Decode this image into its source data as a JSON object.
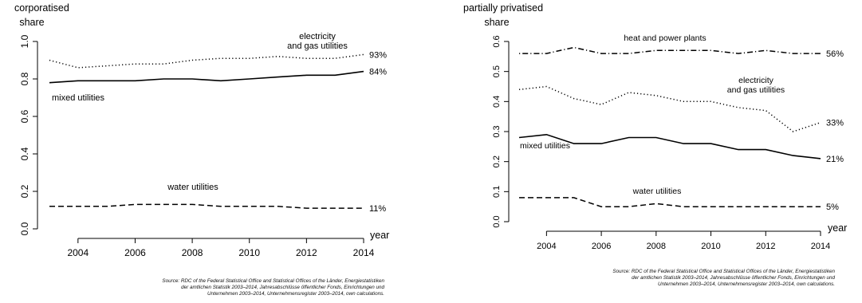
{
  "chart_data": [
    {
      "type": "line",
      "title": "corporatised",
      "ylabel": "share",
      "xlabel": "year",
      "xlim": [
        2003,
        2014
      ],
      "ylim": [
        0,
        1.0
      ],
      "xticks": [
        "2004",
        "2006",
        "2008",
        "2010",
        "2012",
        "2014"
      ],
      "yticks": [
        "0.0",
        "0.2",
        "0.4",
        "0.6",
        "0.8",
        "1.0"
      ],
      "x": [
        2003,
        2004,
        2005,
        2006,
        2007,
        2008,
        2009,
        2010,
        2011,
        2012,
        2013,
        2014
      ],
      "series": [
        {
          "name": "electricity and gas utilities",
          "label_lines": [
            "electricity",
            "and gas utilities"
          ],
          "style": "dotted",
          "values": [
            0.9,
            0.86,
            0.87,
            0.88,
            0.88,
            0.9,
            0.91,
            0.91,
            0.92,
            0.91,
            0.91,
            0.93
          ],
          "end_label": "93%"
        },
        {
          "name": "mixed utilities",
          "label_lines": [
            "mixed utilities"
          ],
          "style": "solid",
          "values": [
            0.78,
            0.79,
            0.79,
            0.79,
            0.8,
            0.8,
            0.79,
            0.8,
            0.81,
            0.82,
            0.82,
            0.84
          ],
          "end_label": "84%"
        },
        {
          "name": "water utilities",
          "label_lines": [
            "water utilities"
          ],
          "style": "dashed",
          "values": [
            0.12,
            0.12,
            0.12,
            0.13,
            0.13,
            0.13,
            0.12,
            0.12,
            0.12,
            0.11,
            0.11,
            0.11
          ],
          "end_label": "11%"
        }
      ],
      "source_lines": [
        "Source:  RDC of the Federal Statistical Office and Statistical Offices of the Länder, Energiestatistiken",
        "der amtlichen Statistik 2003–2014, Jahresabschlüsse öffentlicher Fonds, Einrichtungen und",
        "Unternehmen 2003–2014, Unternehmensregister 2003–2014, own calculations."
      ]
    },
    {
      "type": "line",
      "title": "partially privatised",
      "ylabel": "share",
      "xlabel": "year",
      "xlim": [
        2003,
        2014
      ],
      "ylim": [
        0,
        0.6
      ],
      "xticks": [
        "2004",
        "2006",
        "2008",
        "2010",
        "2012",
        "2014"
      ],
      "yticks": [
        "0.0",
        "0.1",
        "0.2",
        "0.3",
        "0.4",
        "0.5",
        "0.6"
      ],
      "x": [
        2003,
        2004,
        2005,
        2006,
        2007,
        2008,
        2009,
        2010,
        2011,
        2012,
        2013,
        2014
      ],
      "series": [
        {
          "name": "heat and power plants",
          "label_lines": [
            "heat and power plants"
          ],
          "style": "dotdash",
          "values": [
            0.56,
            0.56,
            0.58,
            0.56,
            0.56,
            0.57,
            0.57,
            0.57,
            0.56,
            0.57,
            0.56,
            0.56
          ],
          "end_label": "56%"
        },
        {
          "name": "electricity and gas utilities",
          "label_lines": [
            "electricity",
            "and gas utilities"
          ],
          "style": "dotted",
          "values": [
            0.44,
            0.45,
            0.41,
            0.39,
            0.43,
            0.42,
            0.4,
            0.4,
            0.38,
            0.37,
            0.3,
            0.33
          ],
          "end_label": "33%"
        },
        {
          "name": "mixed utilities",
          "label_lines": [
            "mixed utilities"
          ],
          "style": "solid",
          "values": [
            0.28,
            0.29,
            0.26,
            0.26,
            0.28,
            0.28,
            0.26,
            0.26,
            0.24,
            0.24,
            0.22,
            0.21
          ],
          "end_label": "21%"
        },
        {
          "name": "water utilities",
          "label_lines": [
            "water utilities"
          ],
          "style": "dashed",
          "values": [
            0.08,
            0.08,
            0.08,
            0.05,
            0.05,
            0.06,
            0.05,
            0.05,
            0.05,
            0.05,
            0.05,
            0.05
          ],
          "end_label": "5%"
        }
      ],
      "source_lines": [
        "Source:  RDC of the Federal Statistical Office and Statistical Offices of the Länder, Energiestatistiken",
        "der amtlichen Statistik 2003–2014, Jahresabschlüsse öffentlicher Fonds, Einrichtungen und",
        "Unternehmen 2003–2014, Unternehmensregister 2003–2014, own calculations."
      ]
    }
  ]
}
